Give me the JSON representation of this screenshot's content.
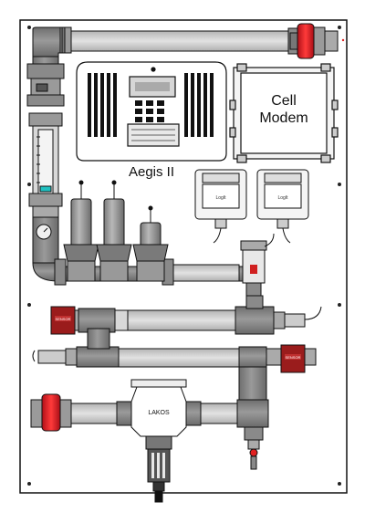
{
  "controller": {
    "title": "Aegis II"
  },
  "cell_modem": {
    "line1": "Cell",
    "line2": "Modem"
  },
  "loggers": [
    {
      "label": "LogIt"
    },
    {
      "label": "LogIt"
    }
  ],
  "lakos": {
    "label": "LAKOS"
  },
  "colors": {
    "panel": "#ffffff",
    "pipe_gray": "#8a8a8a",
    "pipe_light": "#c8c8c8",
    "valve_red": "#e0202a",
    "sensor_red": "#8b1a1a",
    "outline": "#111111"
  }
}
